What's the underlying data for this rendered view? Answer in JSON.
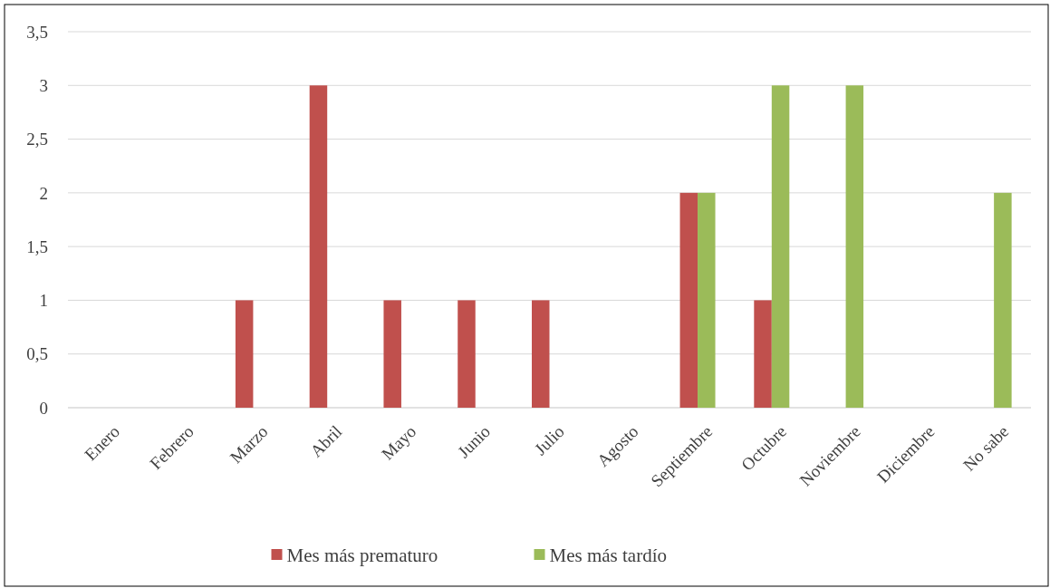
{
  "chart_data": {
    "type": "bar",
    "categories": [
      "Enero",
      "Febrero",
      "Marzo",
      "Abril",
      "Mayo",
      "Junio",
      "Julio",
      "Agosto",
      "Septiembre",
      "Octubre",
      "Noviembre",
      "Diciembre",
      "No sabe"
    ],
    "series": [
      {
        "name": "Mes más prematuro",
        "color": "#c0504d",
        "values": [
          0,
          0,
          1,
          3,
          1,
          1,
          1,
          0,
          2,
          1,
          0,
          0,
          0
        ]
      },
      {
        "name": "Mes más tardío",
        "color": "#9bbb59",
        "values": [
          0,
          0,
          0,
          0,
          0,
          0,
          0,
          0,
          2,
          3,
          3,
          0,
          2
        ]
      }
    ],
    "ylim": [
      0,
      3.5
    ],
    "yticks": [
      {
        "value": 0,
        "label": "0"
      },
      {
        "value": 0.5,
        "label": "0,5"
      },
      {
        "value": 1,
        "label": "1"
      },
      {
        "value": 1.5,
        "label": "1,5"
      },
      {
        "value": 2,
        "label": "2"
      },
      {
        "value": 2.5,
        "label": "2,5"
      },
      {
        "value": 3,
        "label": "3"
      },
      {
        "value": 3.5,
        "label": "3,5"
      }
    ],
    "grid": "y",
    "legend": "bottom"
  }
}
